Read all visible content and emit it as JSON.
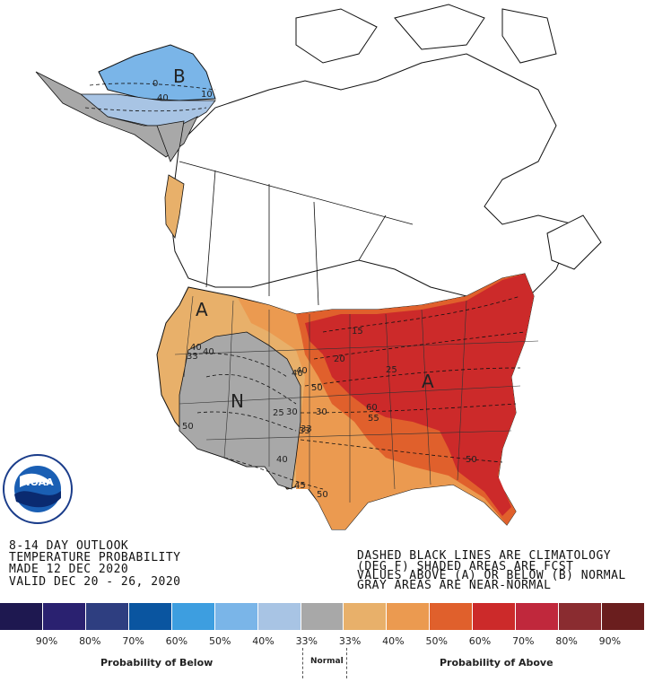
{
  "title": {
    "line1": "8-14 DAY OUTLOOK",
    "line2": "TEMPERATURE PROBABILITY",
    "line3": "MADE  12 DEC 2020",
    "line4": "VALID  DEC 20 - 26, 2020"
  },
  "notes": {
    "line1": "DASHED BLACK LINES ARE CLIMATOLOGY",
    "line2": "(DEG F) SHADED AREAS ARE FCST",
    "line3": "VALUES ABOVE (A) OR BELOW (B) NORMAL",
    "line4": "GRAY AREAS ARE NEAR-NORMAL"
  },
  "logo": {
    "text": "NOAA",
    "ring": "NATIONAL OCEANIC AND ATMOSPHERIC ADMINISTRATION · U.S. DEPARTMENT OF COMMERCE"
  },
  "regions": {
    "alaska_letter": "B",
    "west_letter": "A",
    "interior_letter": "N",
    "east_letter": "A"
  },
  "contours": [
    "0",
    "40",
    "10",
    "40",
    "33",
    "40",
    "33",
    "40",
    "15",
    "20",
    "25",
    "30",
    "40",
    "50",
    "50",
    "60",
    "55",
    "25",
    "30",
    "33",
    "40",
    "45",
    "50",
    "50"
  ],
  "legend": {
    "below_label": "Probability of Below",
    "normal_label": "Normal",
    "above_label": "Probability of Above",
    "percents": [
      "90%",
      "80%",
      "70%",
      "60%",
      "50%",
      "40%",
      "33%",
      "33%",
      "40%",
      "50%",
      "60%",
      "70%",
      "80%",
      "90%"
    ],
    "colors": [
      "#1e1850",
      "#2a2170",
      "#2e3e80",
      "#0a55a0",
      "#3d9ee0",
      "#7ab5e8",
      "#a8c4e4",
      "#a8a8a8",
      "#e8b06a",
      "#eb9a50",
      "#e0602c",
      "#cc2a2a",
      "#c0283c",
      "#8a2c30",
      "#6a1e1e"
    ]
  },
  "region_colors": {
    "below_50": "#7ab5e8",
    "below_40": "#a8c4e4",
    "near_normal": "#a8a8a8",
    "above_40": "#e8b06a",
    "above_50": "#eb9a50",
    "above_60": "#e0602c",
    "above_70": "#cc2a2a"
  }
}
